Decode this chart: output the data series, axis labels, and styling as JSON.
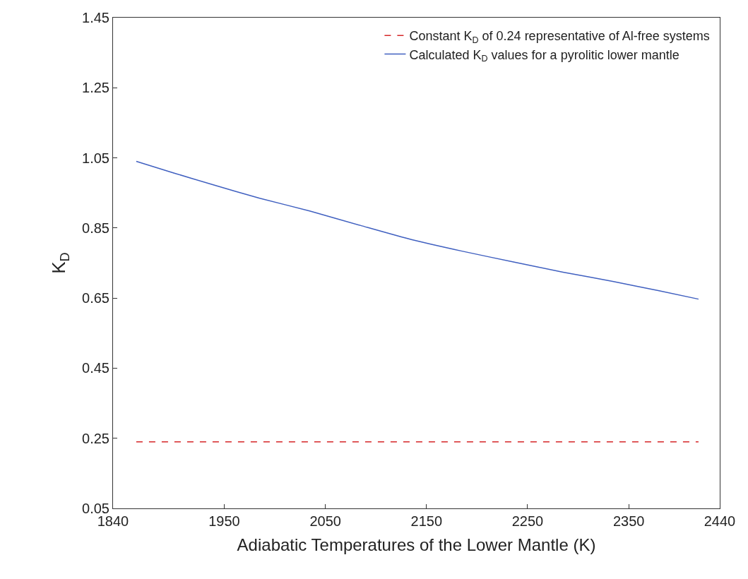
{
  "chart_data": {
    "type": "line",
    "xlabel": "Adiabatic Temperatures of the Lower Mantle (K)",
    "ylabel": "K$_{D}$",
    "series": [
      {
        "name": "Constant K$_{D}$ of 0.24 representative of Al-free systems",
        "color": "#d62728",
        "line_style": "dashed",
        "x": [
          1863,
          2419
        ],
        "values": [
          0.24,
          0.24
        ]
      },
      {
        "name": "Calculated K$_{D}$ values for a pyrolitic lower mantle",
        "color": "#4060c0",
        "line_style": "solid",
        "x": [
          1863,
          1900,
          1938,
          1985,
          2035,
          2085,
          2135,
          2185,
          2236,
          2285,
          2335,
          2380,
          2419
        ],
        "values": [
          1.04,
          1.007,
          0.974,
          0.935,
          0.898,
          0.857,
          0.817,
          0.784,
          0.753,
          0.724,
          0.697,
          0.671,
          0.647
        ]
      }
    ],
    "xlim": [
      1840,
      2440
    ],
    "xticks": [
      1840,
      1950,
      2050,
      2150,
      2250,
      2350,
      2440
    ],
    "ylim": [
      0.05,
      1.45
    ],
    "yticks": [
      0.05,
      0.25,
      0.45,
      0.65,
      0.85,
      1.05,
      1.25,
      1.45
    ],
    "legend": "top right",
    "marker": "none"
  }
}
